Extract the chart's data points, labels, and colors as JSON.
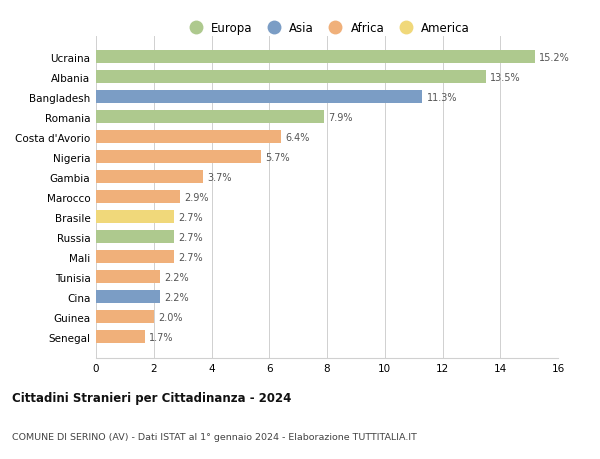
{
  "countries": [
    "Ucraina",
    "Albania",
    "Bangladesh",
    "Romania",
    "Costa d'Avorio",
    "Nigeria",
    "Gambia",
    "Marocco",
    "Brasile",
    "Russia",
    "Mali",
    "Tunisia",
    "Cina",
    "Guinea",
    "Senegal"
  ],
  "values": [
    15.2,
    13.5,
    11.3,
    7.9,
    6.4,
    5.7,
    3.7,
    2.9,
    2.7,
    2.7,
    2.7,
    2.2,
    2.2,
    2.0,
    1.7
  ],
  "continents": [
    "Europa",
    "Europa",
    "Asia",
    "Europa",
    "Africa",
    "Africa",
    "Africa",
    "Africa",
    "America",
    "Europa",
    "Africa",
    "Africa",
    "Asia",
    "Africa",
    "Africa"
  ],
  "continent_colors": {
    "Europa": "#aec98e",
    "Asia": "#7b9dc5",
    "Africa": "#f0b07a",
    "America": "#f0d87a"
  },
  "legend_order": [
    "Europa",
    "Asia",
    "Africa",
    "America"
  ],
  "title": "Cittadini Stranieri per Cittadinanza - 2024",
  "subtitle": "COMUNE DI SERINO (AV) - Dati ISTAT al 1° gennaio 2024 - Elaborazione TUTTITALIA.IT",
  "xlim": [
    0,
    16
  ],
  "xticks": [
    0,
    2,
    4,
    6,
    8,
    10,
    12,
    14,
    16
  ],
  "background_color": "#ffffff",
  "grid_color": "#d0d0d0",
  "bar_height": 0.65
}
